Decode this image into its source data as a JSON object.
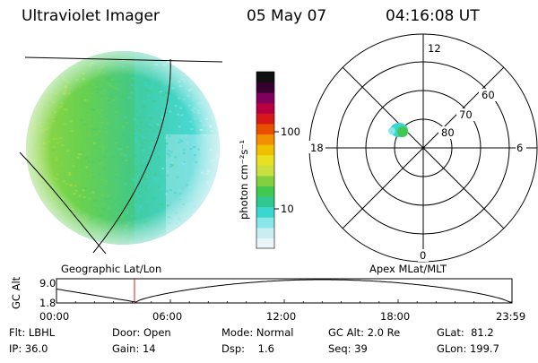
{
  "header": {
    "instrument": "Ultraviolet Imager",
    "date": "05 May 07",
    "time": "04:16:08 UT"
  },
  "colors": {
    "scale": [
      "#e8f6f8",
      "#c8eef2",
      "#88e6e8",
      "#3cd6d0",
      "#30c890",
      "#40c850",
      "#80d040",
      "#c8e040",
      "#e8e020",
      "#f0c000",
      "#f09000",
      "#e85000",
      "#d81818",
      "#b80040",
      "#800060",
      "#380030",
      "#101010"
    ],
    "grid": "#000000",
    "line": "#000000",
    "marker": "#cc2020",
    "background": "#ffffff"
  },
  "geo_map": {
    "label": "Geographic Lat/Lon"
  },
  "colorbar": {
    "unit_label": "photon cm⁻²s⁻¹",
    "ticks": [
      "100",
      "10"
    ]
  },
  "polar_plot": {
    "label": "Apex MLat/MLT",
    "mlt_labels": {
      "top": "12",
      "left": "18",
      "right": "6",
      "bottom": "0"
    },
    "lat_labels": [
      "60",
      "70",
      "80"
    ]
  },
  "altitude_chart": {
    "ylabel": "GC Alt",
    "ytick_top": "9.0",
    "ytick_bottom": "1.8",
    "xticks": [
      "00:00",
      "06:00",
      "12:00",
      "18:00",
      "23:59"
    ]
  },
  "status": {
    "flt_label": "Flt:",
    "flt_value": "LBHL",
    "ip_label": "IP:",
    "ip_value": "36.0",
    "door_label": "Door:",
    "door_value": "Open",
    "gain_label": "Gain:",
    "gain_value": "14",
    "mode_label": "Mode:",
    "mode_value": "Normal",
    "dsp_label": "Dsp:",
    "dsp_value": "1.6",
    "gcalt_label": "GC Alt:",
    "gcalt_value": "2.0 Re",
    "seq_label": "Seq:",
    "seq_value": "39",
    "glat_label": "GLat:",
    "glat_value": "81.2",
    "glon_label": "GLon:",
    "glon_value": "199.7"
  }
}
